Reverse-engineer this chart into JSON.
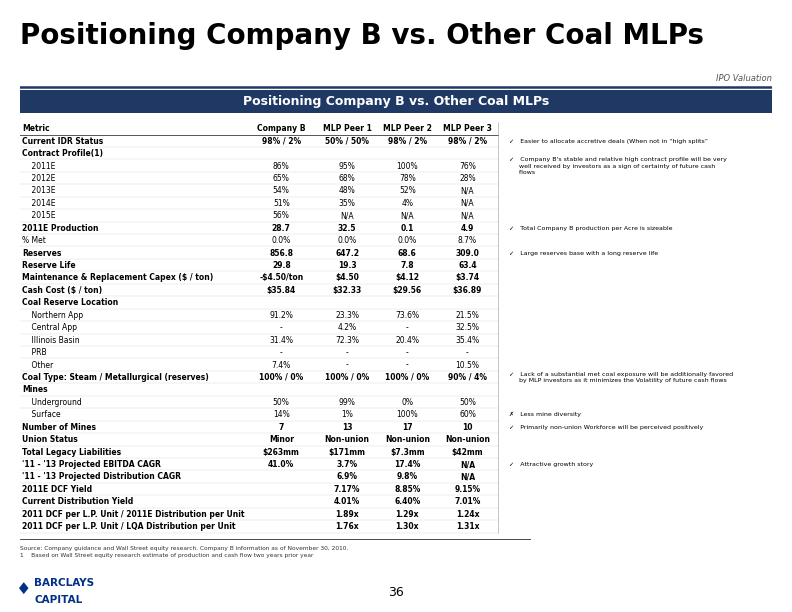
{
  "title": "Positioning Company B vs. Other Coal MLPs",
  "subtitle_right": "IPO Valuation",
  "table_header": "Positioning Company B vs. Other Coal MLPs",
  "header_bg": "#1F3864",
  "header_fg": "#FFFFFF",
  "col_headers": [
    "Metric",
    "Company B",
    "MLP Peer 1",
    "MLP Peer 2",
    "MLP Peer 3"
  ],
  "rows": [
    [
      "Current IDR Status",
      "98% / 2%",
      "50% / 50%",
      "98% / 2%",
      "98% / 2%"
    ],
    [
      "Contract Profile(1)",
      "",
      "",
      "",
      ""
    ],
    [
      "    2011E",
      "86%",
      "95%",
      "100%",
      "76%"
    ],
    [
      "    2012E",
      "65%",
      "68%",
      "78%",
      "28%"
    ],
    [
      "    2013E",
      "54%",
      "48%",
      "52%",
      "N/A"
    ],
    [
      "    2014E",
      "51%",
      "35%",
      "4%",
      "N/A"
    ],
    [
      "    2015E",
      "56%",
      "N/A",
      "N/A",
      "N/A"
    ],
    [
      "2011E Production",
      "28.7",
      "32.5",
      "0.1",
      "4.9"
    ],
    [
      "% Met",
      "0.0%",
      "0.0%",
      "0.0%",
      "8.7%"
    ],
    [
      "Reserves",
      "856.8",
      "647.2",
      "68.6",
      "309.0"
    ],
    [
      "Reserve Life",
      "29.8",
      "19.3",
      "7.8",
      "63.4"
    ],
    [
      "Maintenance & Replacement Capex ($ / ton)",
      "-$4.50/ton",
      "$4.50",
      "$4.12",
      "$3.74"
    ],
    [
      "Cash Cost ($ / ton)",
      "$35.84",
      "$32.33",
      "$29.56",
      "$36.89"
    ],
    [
      "Coal Reserve Location",
      "",
      "",
      "",
      ""
    ],
    [
      "    Northern App",
      "91.2%",
      "23.3%",
      "73.6%",
      "21.5%"
    ],
    [
      "    Central App",
      "-",
      "4.2%",
      "-",
      "32.5%"
    ],
    [
      "    Illinois Basin",
      "31.4%",
      "72.3%",
      "20.4%",
      "35.4%"
    ],
    [
      "    PRB",
      "-",
      "-",
      "-",
      "-"
    ],
    [
      "    Other",
      "7.4%",
      "-",
      "-",
      "10.5%"
    ],
    [
      "Coal Type: Steam / Metallurgical (reserves)",
      "100% / 0%",
      "100% / 0%",
      "100% / 0%",
      "90% / 4%"
    ],
    [
      "Mines",
      "",
      "",
      "",
      ""
    ],
    [
      "    Underground",
      "50%",
      "99%",
      "0%",
      "50%"
    ],
    [
      "    Surface",
      "14%",
      "1%",
      "100%",
      "60%"
    ],
    [
      "Number of Mines",
      "7",
      "13",
      "17",
      "10"
    ],
    [
      "Union Status",
      "Minor",
      "Non-union",
      "Non-union",
      "Non-union"
    ],
    [
      "Total Legacy Liabilities",
      "$263mm",
      "$171mm",
      "$7.3mm",
      "$42mm"
    ],
    [
      "'11 - '13 Projected EBITDA CAGR",
      "41.0%",
      "3.7%",
      "17.4%",
      "N/A"
    ],
    [
      "'11 - '13 Projected Distribution CAGR",
      "",
      "6.9%",
      "9.8%",
      "N/A"
    ],
    [
      "2011E DCF Yield",
      "",
      "7.17%",
      "8.85%",
      "9.15%"
    ],
    [
      "Current Distribution Yield",
      "",
      "4.01%",
      "6.40%",
      "7.01%"
    ],
    [
      "2011 DCF per L.P. Unit / 2011E Distribution per Unit",
      "",
      "1.89x",
      "1.29x",
      "1.24x"
    ],
    [
      "2011 DCF per L.P. Unit / LQA Distribution per Unit",
      "",
      "1.76x",
      "1.30x",
      "1.31x"
    ]
  ],
  "bold_rows": [
    0,
    7,
    9,
    10,
    11,
    12,
    13,
    19,
    20,
    23,
    24,
    25,
    26,
    27,
    28,
    29,
    30,
    31
  ],
  "section_rows": [
    1,
    13,
    20
  ],
  "right_annotations": [
    [
      0,
      "✓   Easier to allocate accretive deals (When not in “high splits”"
    ],
    [
      2,
      "✓   Company B's stable and relative high contract profile will be very\n     well received by investors as a sign of certainty of future cash\n     flows"
    ],
    [
      7,
      "✓   Total Company B production per Acre is sizeable"
    ],
    [
      9,
      "✓   Large reserves base with a long reserve life"
    ],
    [
      19,
      "✓   Lack of a substantial met coal exposure will be additionally favored\n     by MLP investors as it minimizes the Volatility of future cash flows"
    ],
    [
      22,
      "✗   Less mine diversity"
    ],
    [
      23,
      "✓   Primarily non-union Workforce will be perceived positively"
    ],
    [
      26,
      "✓   Attractive growth story"
    ]
  ],
  "source_text": "Source: Company guidance and Wall Street equity research. Company B information as of November 30, 2010.\n1    Based on Wall Street equity research estimate of production and cash flow two years prior year",
  "footer_page": "36",
  "bg_color": "#FFFFFF",
  "title_color": "#000000",
  "title_fontsize": 20,
  "subtitle_fontsize": 6,
  "banner_fontsize": 9,
  "table_fontsize": 5.5,
  "annot_fontsize": 4.5
}
